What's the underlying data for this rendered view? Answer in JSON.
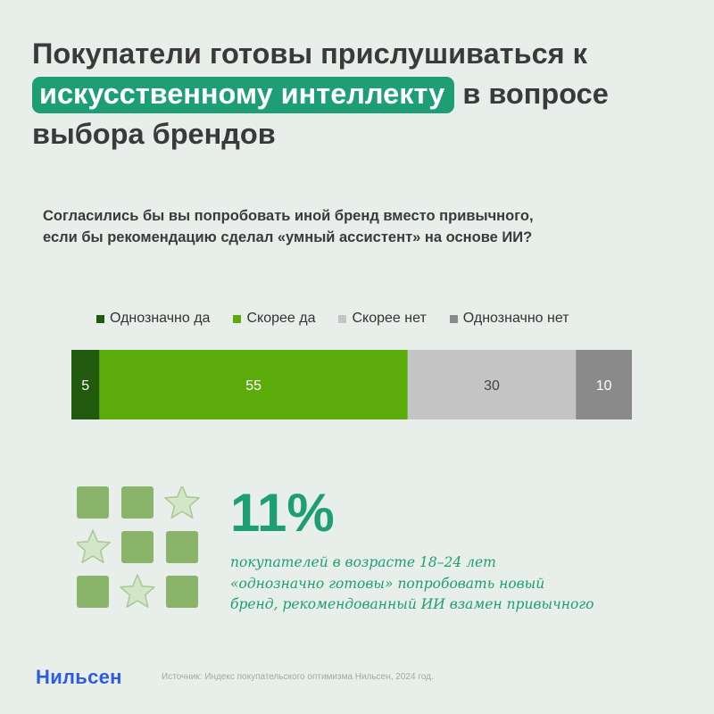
{
  "headline": {
    "part1": "Покупатели готовы прислушиваться к ",
    "highlight": "искусственному интеллекту",
    "part2": " в вопросе выбора брендов"
  },
  "question": {
    "line1": "Согласились бы вы попробовать иной бренд вместо привычного,",
    "line2": "если бы рекомендацию сделал «умный ассистент» на основе ИИ?"
  },
  "chart_data": {
    "type": "bar",
    "orientation": "horizontal-stacked-100",
    "categories": [
      "Однозначно да",
      "Скорее да",
      "Скорее нет",
      "Однозначно нет"
    ],
    "values": [
      5,
      55,
      30,
      10
    ],
    "colors": [
      "#215a0c",
      "#5bab0b",
      "#c4c4c4",
      "#8a8a8a"
    ],
    "label_colors": [
      "#ffffff",
      "#ffffff",
      "#444444",
      "#ffffff"
    ],
    "legend_position": "top",
    "grid": false,
    "title": ""
  },
  "stat": {
    "number": "11%",
    "line1": "покупателей в возрасте 18–24 лет",
    "line2": "«однозначно готовы» попробовать новый",
    "line3": "бренд, рекомендованный ИИ взамен привычного"
  },
  "icon_grid": [
    [
      "square",
      "square",
      "star"
    ],
    [
      "star",
      "square",
      "square"
    ],
    [
      "square",
      "star",
      "square"
    ]
  ],
  "icon_colors": {
    "square": "#8ab469",
    "star": "#d3e6c8",
    "star_stroke": "#a9c994"
  },
  "footer": {
    "logo": "Нильсен",
    "source": "Источник: Индекс покупательского оптимизма Нильсен, 2024 год."
  }
}
